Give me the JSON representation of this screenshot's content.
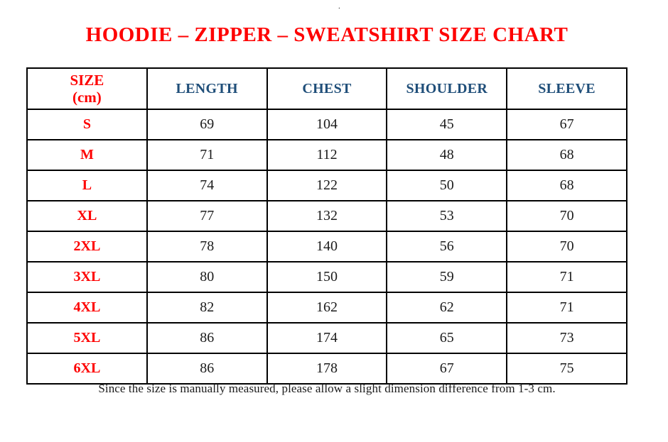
{
  "page": {
    "top_mark": ".",
    "title": "HOODIE – ZIPPER – SWEATSHIRT SIZE CHART",
    "footnote": "Since the size is manually measured, please allow a slight dimension difference from 1-3 cm."
  },
  "colors": {
    "title_red": "#fe0000",
    "header_blue": "#1f4e79",
    "body_text": "#1b1b1b",
    "table_border": "#000000",
    "background": "#ffffff"
  },
  "table": {
    "header": {
      "size_line1": "SIZE",
      "size_line2": "(cm)",
      "length": "LENGTH",
      "chest": "CHEST",
      "shoulder": "SHOULDER",
      "sleeve": "SLEEVE"
    },
    "rows": [
      {
        "size": "S",
        "length": "69",
        "chest": "104",
        "shoulder": "45",
        "sleeve": "67"
      },
      {
        "size": "M",
        "length": "71",
        "chest": "112",
        "shoulder": "48",
        "sleeve": "68"
      },
      {
        "size": "L",
        "length": "74",
        "chest": "122",
        "shoulder": "50",
        "sleeve": "68"
      },
      {
        "size": "XL",
        "length": "77",
        "chest": "132",
        "shoulder": "53",
        "sleeve": "70"
      },
      {
        "size": "2XL",
        "length": "78",
        "chest": "140",
        "shoulder": "56",
        "sleeve": "70"
      },
      {
        "size": "3XL",
        "length": "80",
        "chest": "150",
        "shoulder": "59",
        "sleeve": "71"
      },
      {
        "size": "4XL",
        "length": "82",
        "chest": "162",
        "shoulder": "62",
        "sleeve": "71"
      },
      {
        "size": "5XL",
        "length": "86",
        "chest": "174",
        "shoulder": "65",
        "sleeve": "73"
      },
      {
        "size": "6XL",
        "length": "86",
        "chest": "178",
        "shoulder": "67",
        "sleeve": "75"
      }
    ]
  }
}
